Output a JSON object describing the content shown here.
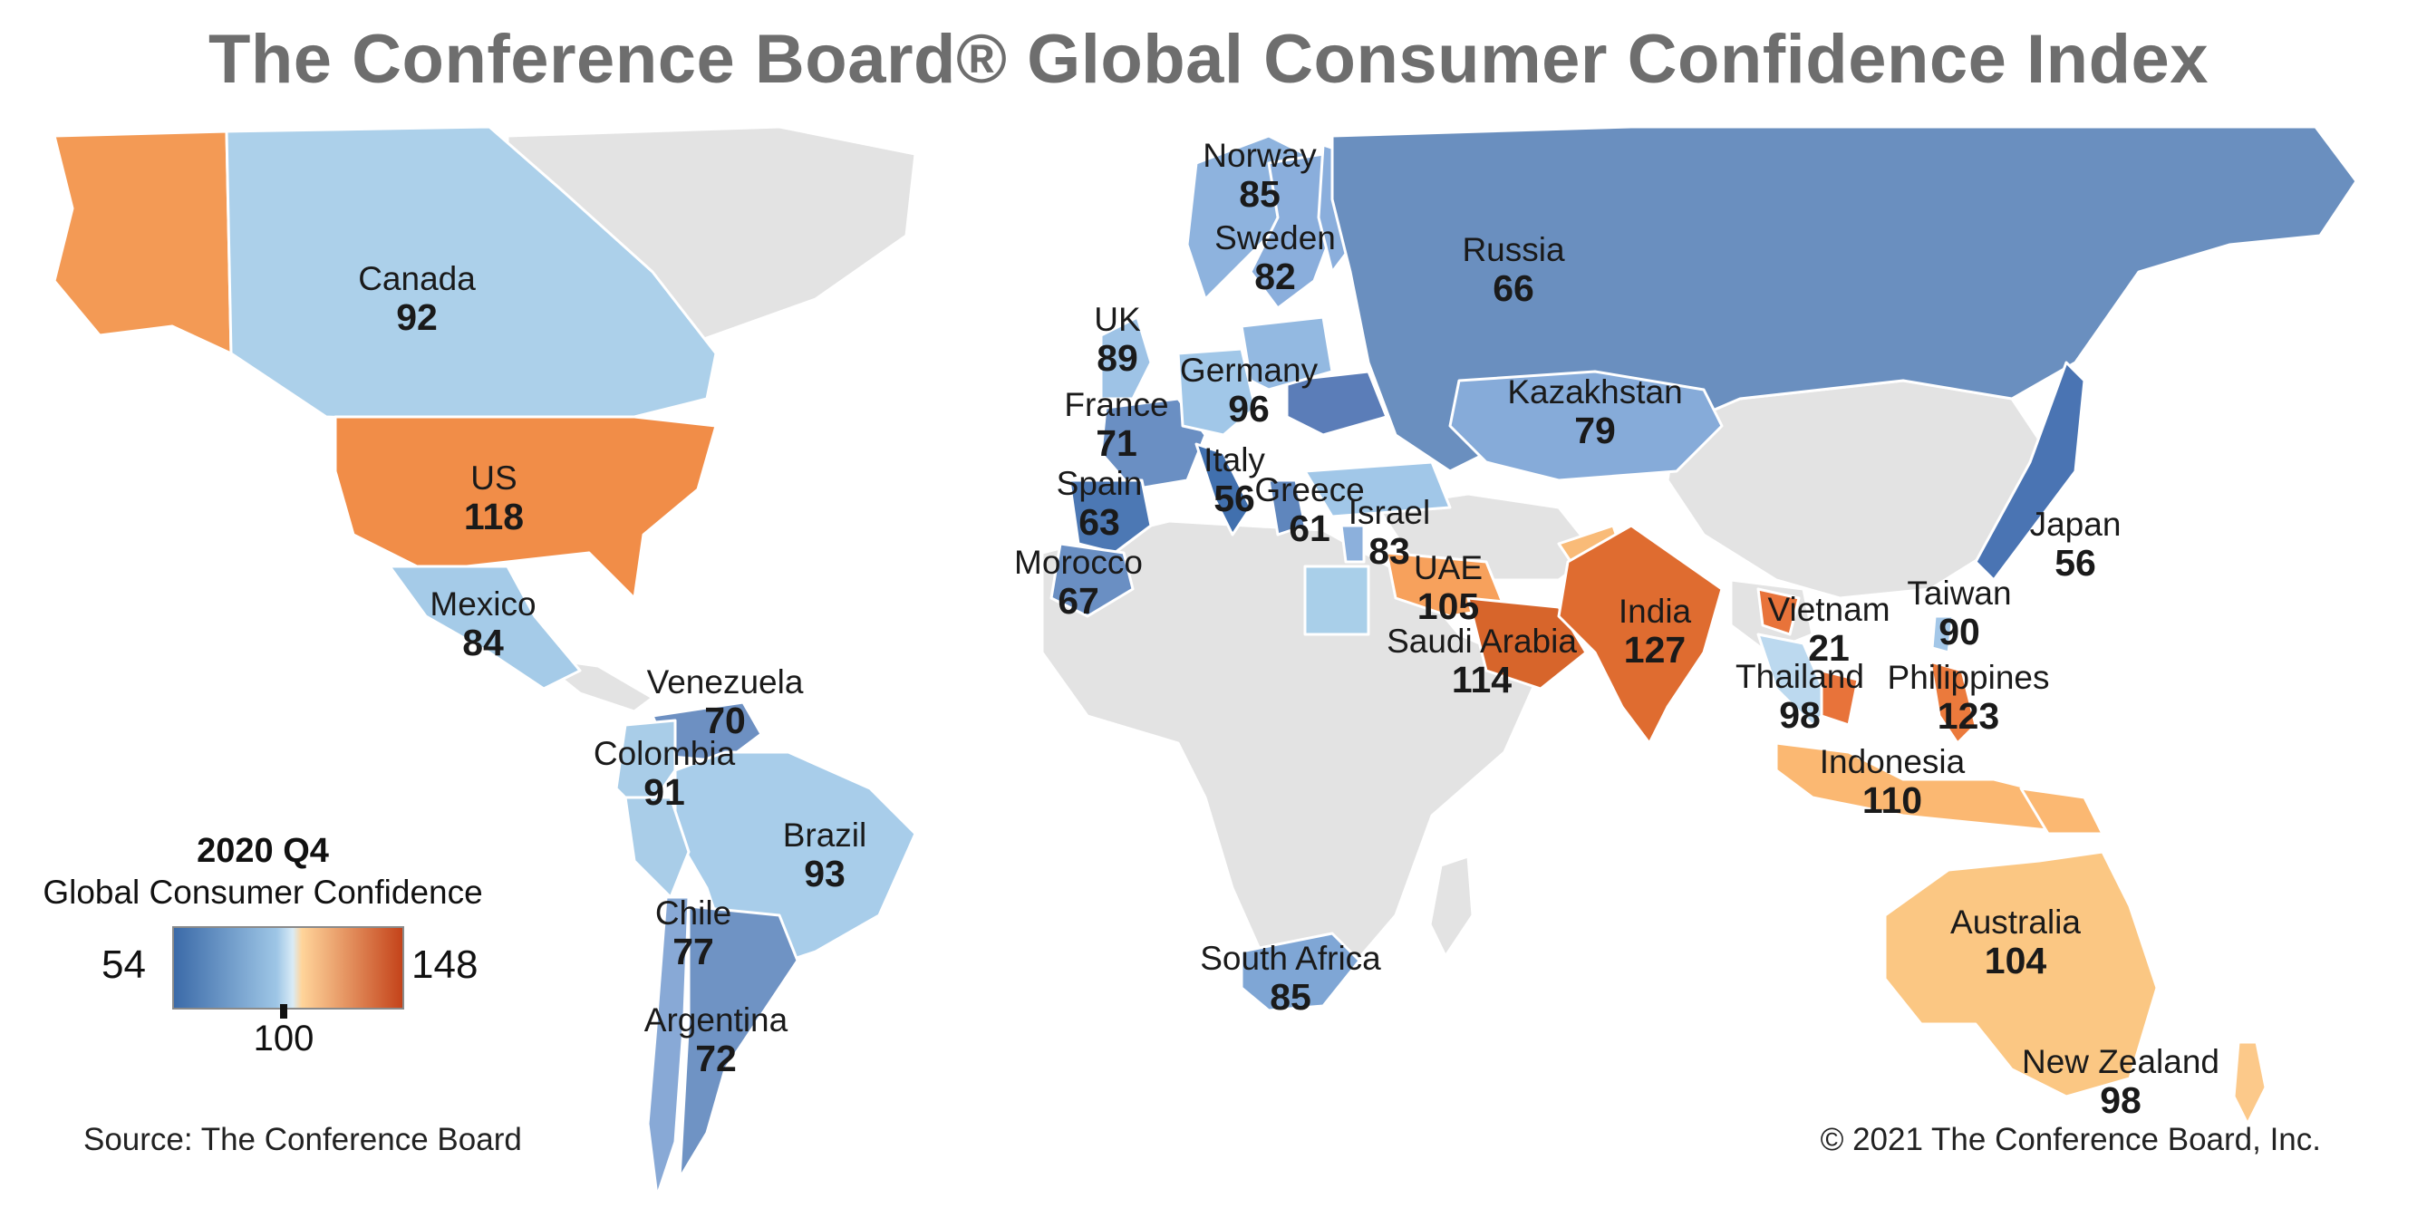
{
  "title": "The Conference Board® Global Consumer Confidence Index",
  "legend": {
    "period": "2020 Q4",
    "subtitle": "Global Consumer Confidence",
    "min": "54",
    "mid": "100",
    "max": "148"
  },
  "source": "Source: The Conference Board",
  "copyright": "© 2021 The Conference Board, Inc.",
  "colors": {
    "scale_low": "#3b6aa8",
    "scale_mid": "#c9e2f2",
    "scale_mid_warm": "#ffd49a",
    "scale_high": "#c4431a",
    "no_data": "#e3e3e3",
    "border": "#ffffff",
    "title": "#6e6e6e"
  },
  "countries": [
    {
      "name": "Canada",
      "value": "92"
    },
    {
      "name": "US",
      "value": "118"
    },
    {
      "name": "Mexico",
      "value": "84"
    },
    {
      "name": "Venezuela",
      "value": "70"
    },
    {
      "name": "Colombia",
      "value": "91"
    },
    {
      "name": "Brazil",
      "value": "93"
    },
    {
      "name": "Chile",
      "value": "77"
    },
    {
      "name": "Argentina",
      "value": "72"
    },
    {
      "name": "Norway",
      "value": "85"
    },
    {
      "name": "Sweden",
      "value": "82"
    },
    {
      "name": "UK",
      "value": "89"
    },
    {
      "name": "Germany",
      "value": "96"
    },
    {
      "name": "France",
      "value": "71"
    },
    {
      "name": "Italy",
      "value": "56"
    },
    {
      "name": "Spain",
      "value": "63"
    },
    {
      "name": "Greece",
      "value": "61"
    },
    {
      "name": "Israel",
      "value": "83"
    },
    {
      "name": "Morocco",
      "value": "67"
    },
    {
      "name": "Russia",
      "value": "66"
    },
    {
      "name": "Kazakhstan",
      "value": "79"
    },
    {
      "name": "UAE",
      "value": "105"
    },
    {
      "name": "Saudi Arabia",
      "value": "114"
    },
    {
      "name": "India",
      "value": "127"
    },
    {
      "name": "Vietnam",
      "value": "21"
    },
    {
      "name": "Thailand",
      "value": "98"
    },
    {
      "name": "Taiwan",
      "value": "90"
    },
    {
      "name": "Philippines",
      "value": "123"
    },
    {
      "name": "Japan",
      "value": "56"
    },
    {
      "name": "Indonesia",
      "value": "110"
    },
    {
      "name": "Australia",
      "value": "104"
    },
    {
      "name": "New Zealand",
      "value": "98"
    },
    {
      "name": "South Africa",
      "value": "85"
    }
  ]
}
